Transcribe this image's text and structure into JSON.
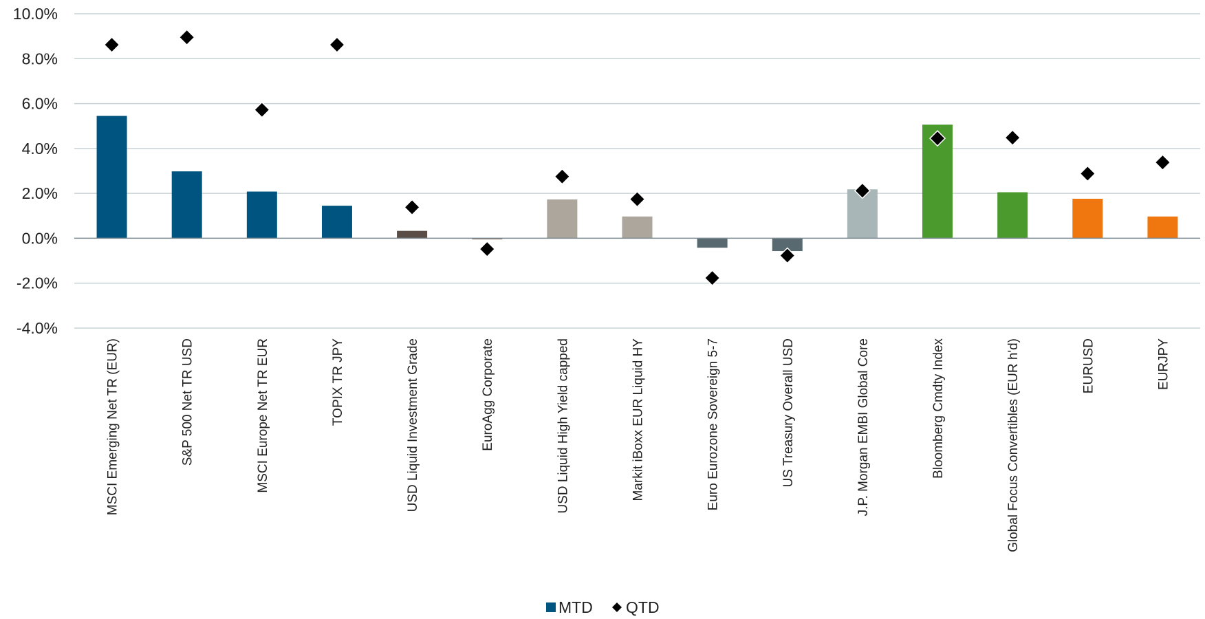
{
  "chart_data": {
    "type": "bar",
    "title": "",
    "xlabel": "",
    "ylabel": "",
    "ylim": [
      -4.0,
      10.0
    ],
    "yticks": [
      "10.0%",
      "8.0%",
      "6.0%",
      "4.0%",
      "2.0%",
      "0.0%",
      "-2.0%",
      "-4.0%"
    ],
    "ytick_values": [
      10,
      8,
      6,
      4,
      2,
      0,
      -2,
      -4
    ],
    "grid": true,
    "legend": "bottom-center",
    "categories": [
      "MSCI Emerging Net TR (EUR)",
      "S&P 500 Net TR USD",
      "MSCI Europe Net TR EUR",
      "TOPIX TR JPY",
      "USD Liquid Investment Grade",
      "EuroAgg Corporate",
      "USD Liquid High Yield capped",
      "Markit iBoxx EUR Liquid HY",
      "Euro Eurozone Sovereign 5-7",
      "US Treasury Overall USD",
      "J.P. Morgan EMBI Global Core",
      "Bloomberg Cmdty Index",
      "Global Focus Convertibles (EUR h'd)",
      "EURUSD",
      "EURJPY"
    ],
    "bar_colors": [
      "#005580",
      "#005580",
      "#005580",
      "#005580",
      "#5a4d45",
      "#8c6e5a",
      "#ada69d",
      "#ada69d",
      "#586a70",
      "#586a70",
      "#a8b6b8",
      "#4a9a2e",
      "#4a9a2e",
      "#f0760f",
      "#f0760f"
    ],
    "series": [
      {
        "name": "MTD",
        "type": "bar",
        "color": "#005580",
        "values": [
          5.45,
          2.98,
          2.08,
          1.45,
          0.33,
          -0.05,
          1.73,
          0.97,
          -0.42,
          -0.57,
          2.18,
          5.06,
          2.05,
          1.76,
          0.97
        ]
      },
      {
        "name": "QTD",
        "type": "scatter",
        "marker": "diamond",
        "color": "#000000",
        "values": [
          8.62,
          8.95,
          5.72,
          8.62,
          1.38,
          -0.48,
          2.75,
          1.74,
          -1.77,
          -0.77,
          2.12,
          4.45,
          4.48,
          2.88,
          3.38
        ]
      }
    ]
  }
}
